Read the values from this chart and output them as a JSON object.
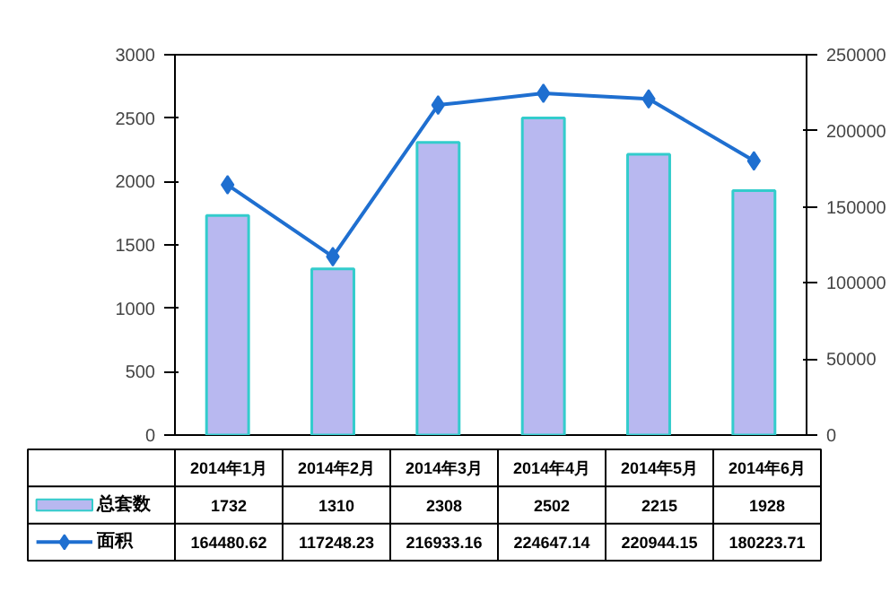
{
  "chart_data": {
    "type": "bar",
    "categories": [
      "2014年1月",
      "2014年2月",
      "2014年3月",
      "2014年4月",
      "2014年5月",
      "2014年6月"
    ],
    "series": [
      {
        "name": "总套数",
        "color": "#b8b8f0",
        "values": [
          1732,
          1310,
          2308,
          2502,
          2215,
          1928
        ]
      },
      {
        "name": "面积",
        "type": "line",
        "axis": "y2",
        "color": "#1f6fd0",
        "marker": "diamond",
        "values": [
          164480.62,
          117248.23,
          216933.16,
          224647.14,
          220944.15,
          180223.71
        ]
      }
    ],
    "ylim": [
      0,
      3000
    ],
    "yticks": [
      0,
      500,
      1000,
      1500,
      2000,
      2500,
      3000
    ],
    "y2lim": [
      0,
      250000
    ],
    "y2ticks": [
      0,
      50000,
      100000,
      150000,
      200000,
      250000
    ],
    "data_labels": true,
    "legend": "bottom",
    "grid": false
  }
}
